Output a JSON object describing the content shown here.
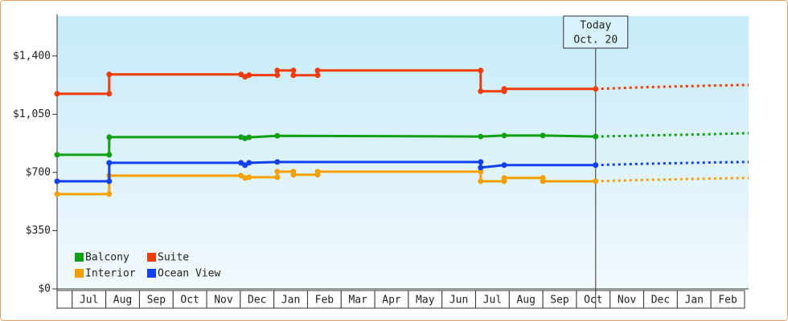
{
  "chart_data": {
    "type": "line",
    "step": true,
    "xlim": [
      -0.45,
      20.12
    ],
    "ylim": [
      0,
      1640
    ],
    "xticks": [
      {
        "value": 0.5,
        "label": "Jul"
      },
      {
        "value": 1.5,
        "label": "Aug"
      },
      {
        "value": 2.5,
        "label": "Sep"
      },
      {
        "value": 3.5,
        "label": "Oct"
      },
      {
        "value": 4.5,
        "label": "Nov"
      },
      {
        "value": 5.5,
        "label": "Dec"
      },
      {
        "value": 6.5,
        "label": "Jan"
      },
      {
        "value": 7.5,
        "label": "Feb"
      },
      {
        "value": 8.5,
        "label": "Mar"
      },
      {
        "value": 9.5,
        "label": "Apr"
      },
      {
        "value": 10.5,
        "label": "May"
      },
      {
        "value": 11.5,
        "label": "Jun"
      },
      {
        "value": 12.5,
        "label": "Jul"
      },
      {
        "value": 13.5,
        "label": "Aug"
      },
      {
        "value": 14.5,
        "label": "Sep"
      },
      {
        "value": 15.5,
        "label": "Oct"
      },
      {
        "value": 16.5,
        "label": "Nov"
      },
      {
        "value": 17.5,
        "label": "Dec"
      },
      {
        "value": 18.5,
        "label": "Jan"
      },
      {
        "value": 19.5,
        "label": "Feb"
      }
    ],
    "yticks": [
      {
        "value": 0,
        "label": "$0"
      },
      {
        "value": 350,
        "label": "$350"
      },
      {
        "value": 700,
        "label": "$700"
      },
      {
        "value": 1050,
        "label": "$1,050"
      },
      {
        "value": 1400,
        "label": "$1,400"
      }
    ],
    "legend": "lower left",
    "annotation": {
      "x": 15.57,
      "lines": [
        "Today",
        "Oct. 20"
      ]
    },
    "series": [
      {
        "name": "Balcony",
        "color": "#11a011",
        "x": [
          -0.45,
          1.1,
          1.1,
          5.02,
          5.14,
          5.26,
          6.1,
          12.15,
          12.85,
          14.0,
          15.57
        ],
        "values": [
          806,
          806,
          912,
          912,
          905,
          911,
          920,
          916,
          922,
          922,
          916
        ],
        "forecast_x": [
          15.57,
          17.0,
          19.0,
          20.12
        ],
        "forecast_values": [
          916,
          922,
          930,
          936
        ]
      },
      {
        "name": "Suite",
        "color": "#f03c0a",
        "x": [
          -0.45,
          1.1,
          1.1,
          5.02,
          5.14,
          5.26,
          6.1,
          6.1,
          6.58,
          6.58,
          7.3,
          7.3,
          12.15,
          12.15,
          12.85,
          12.85,
          15.57
        ],
        "values": [
          1173,
          1173,
          1289,
          1289,
          1275,
          1285,
          1285,
          1313,
          1313,
          1284,
          1284,
          1313,
          1313,
          1188,
          1188,
          1202,
          1202
        ],
        "forecast_x": [
          15.57,
          17.0,
          19.0,
          20.12
        ],
        "forecast_values": [
          1202,
          1212,
          1222,
          1226
        ]
      },
      {
        "name": "Interior",
        "color": "#f5a000",
        "x": [
          -0.45,
          1.1,
          1.1,
          5.02,
          5.14,
          5.26,
          6.1,
          6.1,
          6.58,
          6.58,
          7.3,
          7.3,
          12.15,
          12.15,
          12.85,
          12.85,
          14.0,
          14.0,
          15.57
        ],
        "values": [
          570,
          570,
          681,
          681,
          667,
          671,
          671,
          705,
          705,
          686,
          686,
          705,
          705,
          647,
          647,
          667,
          667,
          647,
          647
        ],
        "forecast_x": [
          15.57,
          17.0,
          19.0,
          20.12
        ],
        "forecast_values": [
          647,
          655,
          663,
          667
        ]
      },
      {
        "name": "Ocean View",
        "color": "#1040f0",
        "x": [
          -0.45,
          1.1,
          1.1,
          5.02,
          5.14,
          5.26,
          6.1,
          12.15,
          12.15,
          12.85,
          15.57
        ],
        "values": [
          647,
          647,
          758,
          758,
          744,
          758,
          763,
          763,
          729,
          744,
          744
        ],
        "forecast_x": [
          15.57,
          17.0,
          19.0,
          20.12
        ],
        "forecast_values": [
          744,
          752,
          760,
          763
        ]
      }
    ]
  }
}
